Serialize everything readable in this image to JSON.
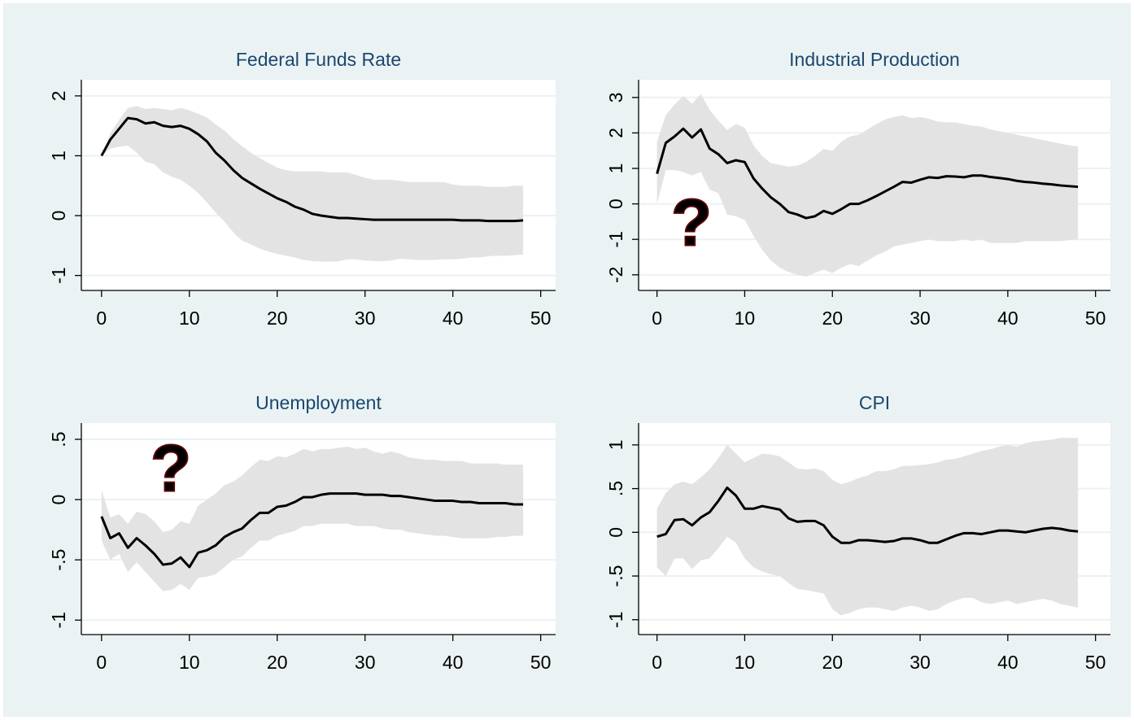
{
  "chart_data": [
    {
      "type": "line",
      "title": "Federal Funds Rate",
      "grid": true,
      "color": "#000000",
      "band_color": "#e3e3e3",
      "xlim": [
        -2.3,
        51.7
      ],
      "xticks": [
        0,
        10,
        20,
        30,
        40,
        50
      ],
      "ylim": [
        -1.25,
        2.27
      ],
      "yticks": [
        2,
        1,
        0,
        -1
      ],
      "x": [
        0,
        1,
        2,
        3,
        4,
        5,
        6,
        7,
        8,
        9,
        10,
        11,
        12,
        13,
        14,
        15,
        16,
        17,
        18,
        19,
        20,
        21,
        22,
        23,
        24,
        25,
        26,
        27,
        28,
        29,
        30,
        31,
        32,
        33,
        34,
        35,
        36,
        37,
        38,
        39,
        40,
        41,
        42,
        43,
        44,
        45,
        46,
        47,
        48
      ],
      "values": [
        1.0,
        1.27,
        1.45,
        1.63,
        1.61,
        1.54,
        1.56,
        1.5,
        1.48,
        1.5,
        1.45,
        1.36,
        1.24,
        1.05,
        0.92,
        0.76,
        0.63,
        0.54,
        0.45,
        0.37,
        0.29,
        0.23,
        0.15,
        0.1,
        0.03,
        0.0,
        -0.02,
        -0.04,
        -0.04,
        -0.05,
        -0.06,
        -0.07,
        -0.07,
        -0.07,
        -0.07,
        -0.07,
        -0.07,
        -0.07,
        -0.07,
        -0.07,
        -0.07,
        -0.08,
        -0.08,
        -0.08,
        -0.09,
        -0.09,
        -0.09,
        -0.09,
        -0.08
      ],
      "upper": [
        1.0,
        1.38,
        1.6,
        1.8,
        1.83,
        1.78,
        1.8,
        1.78,
        1.76,
        1.8,
        1.76,
        1.7,
        1.64,
        1.52,
        1.42,
        1.28,
        1.16,
        1.05,
        0.96,
        0.88,
        0.8,
        0.76,
        0.74,
        0.74,
        0.74,
        0.74,
        0.72,
        0.72,
        0.72,
        0.68,
        0.63,
        0.6,
        0.6,
        0.6,
        0.58,
        0.56,
        0.56,
        0.56,
        0.56,
        0.56,
        0.52,
        0.5,
        0.5,
        0.5,
        0.48,
        0.48,
        0.48,
        0.5,
        0.5
      ],
      "lower": [
        1.0,
        1.12,
        1.15,
        1.17,
        1.05,
        0.9,
        0.86,
        0.72,
        0.65,
        0.6,
        0.5,
        0.38,
        0.22,
        0.05,
        -0.1,
        -0.28,
        -0.42,
        -0.48,
        -0.55,
        -0.6,
        -0.64,
        -0.67,
        -0.7,
        -0.74,
        -0.76,
        -0.77,
        -0.77,
        -0.76,
        -0.73,
        -0.73,
        -0.75,
        -0.76,
        -0.76,
        -0.75,
        -0.72,
        -0.73,
        -0.74,
        -0.74,
        -0.74,
        -0.73,
        -0.73,
        -0.72,
        -0.7,
        -0.7,
        -0.68,
        -0.67,
        -0.67,
        -0.66,
        -0.65
      ]
    },
    {
      "type": "line",
      "title": "Industrial Production",
      "grid": true,
      "color": "#000000",
      "band_color": "#e3e3e3",
      "annotation": "?",
      "annotation_color": "#ff0000",
      "xlim": [
        -2.1,
        51.7
      ],
      "xticks": [
        0,
        10,
        20,
        30,
        40,
        50
      ],
      "ylim": [
        -2.44,
        3.5
      ],
      "yticks": [
        3,
        2,
        1,
        0,
        -1,
        -2
      ],
      "x": [
        0,
        1,
        2,
        3,
        4,
        5,
        6,
        7,
        8,
        9,
        10,
        11,
        12,
        13,
        14,
        15,
        16,
        17,
        18,
        19,
        20,
        21,
        22,
        23,
        24,
        25,
        26,
        27,
        28,
        29,
        30,
        31,
        32,
        33,
        34,
        35,
        36,
        37,
        38,
        39,
        40,
        41,
        42,
        43,
        44,
        45,
        46,
        47,
        48
      ],
      "values": [
        0.85,
        1.72,
        1.9,
        2.12,
        1.87,
        2.1,
        1.56,
        1.4,
        1.15,
        1.23,
        1.18,
        0.72,
        0.43,
        0.18,
        0.0,
        -0.23,
        -0.3,
        -0.4,
        -0.35,
        -0.2,
        -0.28,
        -0.15,
        0.0,
        0.0,
        0.1,
        0.22,
        0.35,
        0.48,
        0.62,
        0.6,
        0.68,
        0.75,
        0.73,
        0.78,
        0.77,
        0.75,
        0.8,
        0.8,
        0.76,
        0.73,
        0.7,
        0.65,
        0.62,
        0.6,
        0.57,
        0.55,
        0.52,
        0.5,
        0.48
      ],
      "upper": [
        1.75,
        2.5,
        2.8,
        3.05,
        2.82,
        3.1,
        2.65,
        2.35,
        2.08,
        2.25,
        2.15,
        1.65,
        1.35,
        1.15,
        1.1,
        1.05,
        1.08,
        1.18,
        1.35,
        1.55,
        1.5,
        1.75,
        1.9,
        1.95,
        2.1,
        2.25,
        2.38,
        2.45,
        2.5,
        2.42,
        2.45,
        2.4,
        2.32,
        2.3,
        2.3,
        2.25,
        2.2,
        2.18,
        2.1,
        2.05,
        2.0,
        1.95,
        1.9,
        1.85,
        1.8,
        1.75,
        1.7,
        1.65,
        1.62
      ],
      "lower": [
        0.0,
        0.95,
        0.95,
        0.9,
        0.8,
        0.9,
        0.4,
        0.3,
        -0.3,
        -0.35,
        -0.45,
        -0.9,
        -1.3,
        -1.6,
        -1.8,
        -1.92,
        -2.0,
        -2.05,
        -1.95,
        -1.85,
        -1.95,
        -1.8,
        -1.7,
        -1.75,
        -1.6,
        -1.45,
        -1.35,
        -1.2,
        -1.15,
        -1.1,
        -1.05,
        -1.0,
        -1.05,
        -1.05,
        -1.05,
        -1.0,
        -1.05,
        -1.0,
        -1.1,
        -1.1,
        -1.1,
        -1.1,
        -1.05,
        -1.05,
        -1.05,
        -1.05,
        -1.05,
        -1.02,
        -1.0
      ]
    },
    {
      "type": "line",
      "title": "Unemployment",
      "grid": true,
      "color": "#000000",
      "band_color": "#e3e3e3",
      "annotation": "?",
      "annotation_color": "#ff0000",
      "xlim": [
        -2.3,
        51.7
      ],
      "xticks": [
        0,
        10,
        20,
        30,
        40,
        50
      ],
      "ylim": [
        -1.12,
        0.635
      ],
      "yticks": [
        {
          "value": 0.5,
          "label": ".5"
        },
        0,
        {
          "value": -0.5,
          "label": "-.5"
        },
        -1
      ],
      "x": [
        0,
        1,
        2,
        3,
        4,
        5,
        6,
        7,
        8,
        9,
        10,
        11,
        12,
        13,
        14,
        15,
        16,
        17,
        18,
        19,
        20,
        21,
        22,
        23,
        24,
        25,
        26,
        27,
        28,
        29,
        30,
        31,
        32,
        33,
        34,
        35,
        36,
        37,
        38,
        39,
        40,
        41,
        42,
        43,
        44,
        45,
        46,
        47,
        48
      ],
      "values": [
        -0.14,
        -0.32,
        -0.28,
        -0.4,
        -0.32,
        -0.38,
        -0.45,
        -0.54,
        -0.53,
        -0.48,
        -0.56,
        -0.44,
        -0.42,
        -0.38,
        -0.31,
        -0.27,
        -0.24,
        -0.17,
        -0.11,
        -0.11,
        -0.06,
        -0.05,
        -0.02,
        0.02,
        0.02,
        0.04,
        0.05,
        0.05,
        0.05,
        0.05,
        0.04,
        0.04,
        0.04,
        0.03,
        0.03,
        0.02,
        0.01,
        0.0,
        -0.01,
        -0.01,
        -0.01,
        -0.02,
        -0.02,
        -0.03,
        -0.03,
        -0.03,
        -0.03,
        -0.04,
        -0.04
      ],
      "upper": [
        0.08,
        -0.15,
        -0.12,
        -0.2,
        -0.1,
        -0.12,
        -0.18,
        -0.27,
        -0.25,
        -0.18,
        -0.2,
        -0.05,
        0.0,
        0.05,
        0.12,
        0.15,
        0.2,
        0.27,
        0.33,
        0.32,
        0.36,
        0.35,
        0.38,
        0.42,
        0.4,
        0.42,
        0.42,
        0.43,
        0.44,
        0.42,
        0.43,
        0.4,
        0.38,
        0.4,
        0.38,
        0.35,
        0.34,
        0.33,
        0.33,
        0.32,
        0.32,
        0.32,
        0.3,
        0.3,
        0.3,
        0.3,
        0.29,
        0.29,
        0.29
      ],
      "lower": [
        -0.34,
        -0.5,
        -0.45,
        -0.6,
        -0.52,
        -0.6,
        -0.68,
        -0.76,
        -0.75,
        -0.7,
        -0.75,
        -0.65,
        -0.64,
        -0.62,
        -0.56,
        -0.5,
        -0.47,
        -0.4,
        -0.34,
        -0.34,
        -0.3,
        -0.28,
        -0.26,
        -0.22,
        -0.22,
        -0.2,
        -0.2,
        -0.2,
        -0.2,
        -0.22,
        -0.22,
        -0.22,
        -0.24,
        -0.25,
        -0.25,
        -0.27,
        -0.28,
        -0.29,
        -0.3,
        -0.3,
        -0.31,
        -0.32,
        -0.32,
        -0.32,
        -0.32,
        -0.31,
        -0.31,
        -0.3,
        -0.3
      ]
    },
    {
      "type": "line",
      "title": "CPI",
      "grid": true,
      "color": "#000000",
      "band_color": "#e3e3e3",
      "xlim": [
        -2.1,
        51.7
      ],
      "xticks": [
        0,
        10,
        20,
        30,
        40,
        50
      ],
      "ylim": [
        -1.17,
        1.25
      ],
      "yticks": [
        1,
        {
          "value": 0.5,
          "label": ".5"
        },
        0,
        {
          "value": -0.5,
          "label": "-.5"
        },
        -1
      ],
      "x": [
        0,
        1,
        2,
        3,
        4,
        5,
        6,
        7,
        8,
        9,
        10,
        11,
        12,
        13,
        14,
        15,
        16,
        17,
        18,
        19,
        20,
        21,
        22,
        23,
        24,
        25,
        26,
        27,
        28,
        29,
        30,
        31,
        32,
        33,
        34,
        35,
        36,
        37,
        38,
        39,
        40,
        41,
        42,
        43,
        44,
        45,
        46,
        47,
        48
      ],
      "values": [
        -0.05,
        -0.02,
        0.14,
        0.15,
        0.08,
        0.17,
        0.23,
        0.36,
        0.51,
        0.42,
        0.27,
        0.27,
        0.3,
        0.28,
        0.26,
        0.16,
        0.12,
        0.13,
        0.13,
        0.08,
        -0.05,
        -0.12,
        -0.12,
        -0.09,
        -0.09,
        -0.1,
        -0.11,
        -0.1,
        -0.07,
        -0.07,
        -0.09,
        -0.12,
        -0.12,
        -0.08,
        -0.04,
        -0.01,
        -0.01,
        -0.02,
        0.0,
        0.02,
        0.02,
        0.01,
        0.0,
        0.02,
        0.04,
        0.05,
        0.04,
        0.02,
        0.01
      ],
      "upper": [
        0.27,
        0.45,
        0.55,
        0.58,
        0.55,
        0.63,
        0.72,
        0.85,
        1.0,
        0.9,
        0.8,
        0.85,
        0.9,
        0.89,
        0.87,
        0.8,
        0.73,
        0.72,
        0.73,
        0.7,
        0.6,
        0.55,
        0.58,
        0.62,
        0.65,
        0.7,
        0.7,
        0.72,
        0.76,
        0.76,
        0.77,
        0.78,
        0.8,
        0.83,
        0.84,
        0.87,
        0.9,
        0.93,
        0.95,
        0.98,
        1.0,
        0.98,
        1.02,
        1.04,
        1.05,
        1.06,
        1.08,
        1.08,
        1.08
      ],
      "lower": [
        -0.4,
        -0.5,
        -0.3,
        -0.3,
        -0.42,
        -0.32,
        -0.3,
        -0.18,
        -0.05,
        -0.12,
        -0.3,
        -0.4,
        -0.45,
        -0.48,
        -0.5,
        -0.58,
        -0.65,
        -0.66,
        -0.68,
        -0.7,
        -0.88,
        -0.95,
        -0.92,
        -0.88,
        -0.86,
        -0.86,
        -0.88,
        -0.9,
        -0.86,
        -0.84,
        -0.86,
        -0.9,
        -0.88,
        -0.82,
        -0.78,
        -0.75,
        -0.75,
        -0.8,
        -0.82,
        -0.8,
        -0.78,
        -0.82,
        -0.8,
        -0.78,
        -0.76,
        -0.78,
        -0.82,
        -0.84,
        -0.86
      ]
    }
  ]
}
